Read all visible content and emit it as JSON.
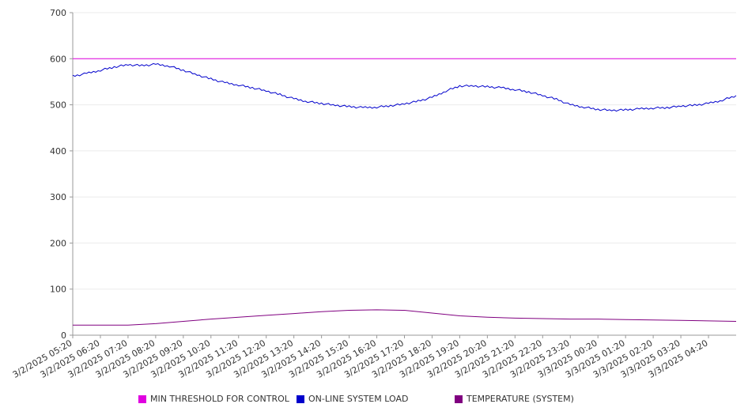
{
  "chart_data": {
    "type": "line",
    "title": "",
    "xlabel": "",
    "ylabel": "",
    "ylim": [
      0,
      700
    ],
    "yticks": [
      0,
      100,
      200,
      300,
      400,
      500,
      600,
      700
    ],
    "grid": true,
    "legend_position": "bottom",
    "x_tick_labels": [
      "3/2/2025 05:20",
      "3/2/2025 06:20",
      "3/2/2025 07:20",
      "3/2/2025 08:20",
      "3/2/2025 09:20",
      "3/2/2025 10:20",
      "3/2/2025 11:20",
      "3/2/2025 12:20",
      "3/2/2025 13:20",
      "3/2/2025 14:20",
      "3/2/2025 15:20",
      "3/2/2025 16:20",
      "3/2/2025 17:20",
      "3/2/2025 18:20",
      "3/2/2025 19:20",
      "3/2/2025 20:20",
      "3/2/2025 21:20",
      "3/2/2025 22:20",
      "3/2/2025 23:20",
      "3/3/2025 00:20",
      "3/3/2025 01:20",
      "3/3/2025 02:20",
      "3/3/2025 03:20",
      "3/3/2025 04:20"
    ],
    "x_range": [
      "3/2/2025 05:20",
      "3/3/2025 05:20"
    ],
    "series": [
      {
        "name": "MIN THRESHOLD FOR CONTROL",
        "color": "#e000e0",
        "x": [
          "3/2/2025 05:20",
          "3/3/2025 05:20"
        ],
        "values": [
          600,
          600
        ]
      },
      {
        "name": "ON-LINE SYSTEM LOAD",
        "color": "#0000cc",
        "x": [
          "3/2/2025 05:20",
          "3/2/2025 05:50",
          "3/2/2025 06:20",
          "3/2/2025 06:50",
          "3/2/2025 07:20",
          "3/2/2025 07:50",
          "3/2/2025 08:20",
          "3/2/2025 08:50",
          "3/2/2025 09:20",
          "3/2/2025 09:50",
          "3/2/2025 10:20",
          "3/2/2025 10:50",
          "3/2/2025 11:20",
          "3/2/2025 11:50",
          "3/2/2025 12:20",
          "3/2/2025 12:50",
          "3/2/2025 13:20",
          "3/2/2025 13:50",
          "3/2/2025 14:20",
          "3/2/2025 14:50",
          "3/2/2025 15:20",
          "3/2/2025 15:50",
          "3/2/2025 16:20",
          "3/2/2025 16:50",
          "3/2/2025 17:20",
          "3/2/2025 17:50",
          "3/2/2025 18:20",
          "3/2/2025 18:50",
          "3/2/2025 19:20",
          "3/2/2025 19:50",
          "3/2/2025 20:20",
          "3/2/2025 20:50",
          "3/2/2025 21:20",
          "3/2/2025 21:50",
          "3/2/2025 22:20",
          "3/2/2025 22:50",
          "3/2/2025 23:20",
          "3/2/2025 23:50",
          "3/3/2025 00:20",
          "3/3/2025 00:50",
          "3/3/2025 01:20",
          "3/3/2025 01:50",
          "3/3/2025 02:20",
          "3/3/2025 02:50",
          "3/3/2025 03:20",
          "3/3/2025 03:50",
          "3/3/2025 04:20",
          "3/3/2025 04:50",
          "3/3/2025 05:20"
        ],
        "values": [
          562,
          568,
          575,
          582,
          587,
          585,
          588,
          584,
          575,
          565,
          556,
          548,
          543,
          537,
          530,
          522,
          513,
          507,
          503,
          499,
          496,
          494,
          495,
          498,
          502,
          508,
          516,
          530,
          541,
          541,
          539,
          537,
          533,
          528,
          520,
          512,
          500,
          495,
          490,
          488,
          489,
          491,
          493,
          494,
          497,
          499,
          503,
          510,
          520
        ]
      },
      {
        "name": "TEMPERATURE (SYSTEM)",
        "color": "#800080",
        "x": [
          "3/2/2025 05:20",
          "3/2/2025 06:20",
          "3/2/2025 07:20",
          "3/2/2025 08:20",
          "3/2/2025 09:20",
          "3/2/2025 10:20",
          "3/2/2025 11:20",
          "3/2/2025 12:20",
          "3/2/2025 13:20",
          "3/2/2025 14:20",
          "3/2/2025 15:20",
          "3/2/2025 16:20",
          "3/2/2025 17:20",
          "3/2/2025 18:20",
          "3/2/2025 19:20",
          "3/2/2025 20:20",
          "3/2/2025 21:20",
          "3/2/2025 22:20",
          "3/2/2025 23:20",
          "3/3/2025 00:20",
          "3/3/2025 01:20",
          "3/3/2025 02:20",
          "3/3/2025 03:20",
          "3/3/2025 04:20",
          "3/3/2025 05:20"
        ],
        "values": [
          22,
          22,
          22,
          25,
          30,
          35,
          39,
          43,
          47,
          51,
          54,
          55,
          54,
          48,
          42,
          39,
          37,
          36,
          35,
          35,
          34,
          33,
          32,
          31,
          30
        ]
      }
    ]
  }
}
